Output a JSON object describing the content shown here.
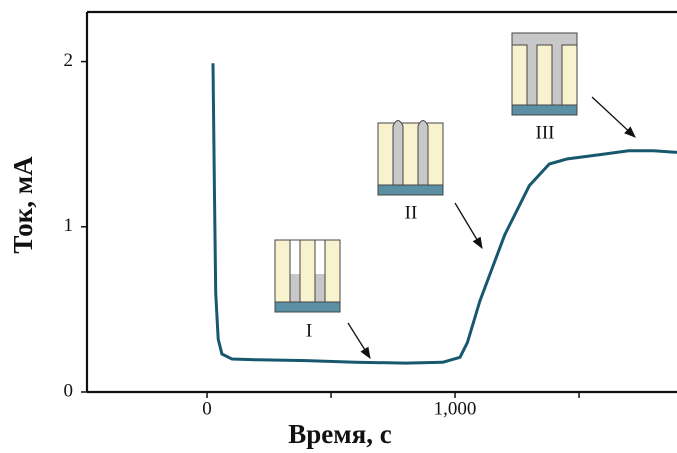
{
  "chart_data": {
    "type": "line",
    "xlabel": "Время, с",
    "ylabel": "Ток, мА",
    "x": [
      24,
      30,
      35,
      45,
      60,
      100,
      200,
      400,
      600,
      800,
      950,
      1020,
      1050,
      1100,
      1200,
      1300,
      1380,
      1450,
      1600,
      1700,
      1800,
      1895
    ],
    "values": [
      1.99,
      1.2,
      0.6,
      0.32,
      0.23,
      0.2,
      0.195,
      0.19,
      0.18,
      0.175,
      0.18,
      0.21,
      0.3,
      0.55,
      0.95,
      1.25,
      1.38,
      1.41,
      1.44,
      1.46,
      1.46,
      1.45
    ],
    "color": "#17586f",
    "xlim": [
      -484,
      1895
    ],
    "ylim": [
      0,
      2.3
    ],
    "xticks": [
      0,
      {
        "value": 1000,
        "label": "1,000"
      }
    ],
    "xminorticks": [
      500,
      1500
    ],
    "yticks": [
      0,
      1,
      2
    ],
    "annotations": [
      "I",
      "II",
      "III"
    ]
  }
}
